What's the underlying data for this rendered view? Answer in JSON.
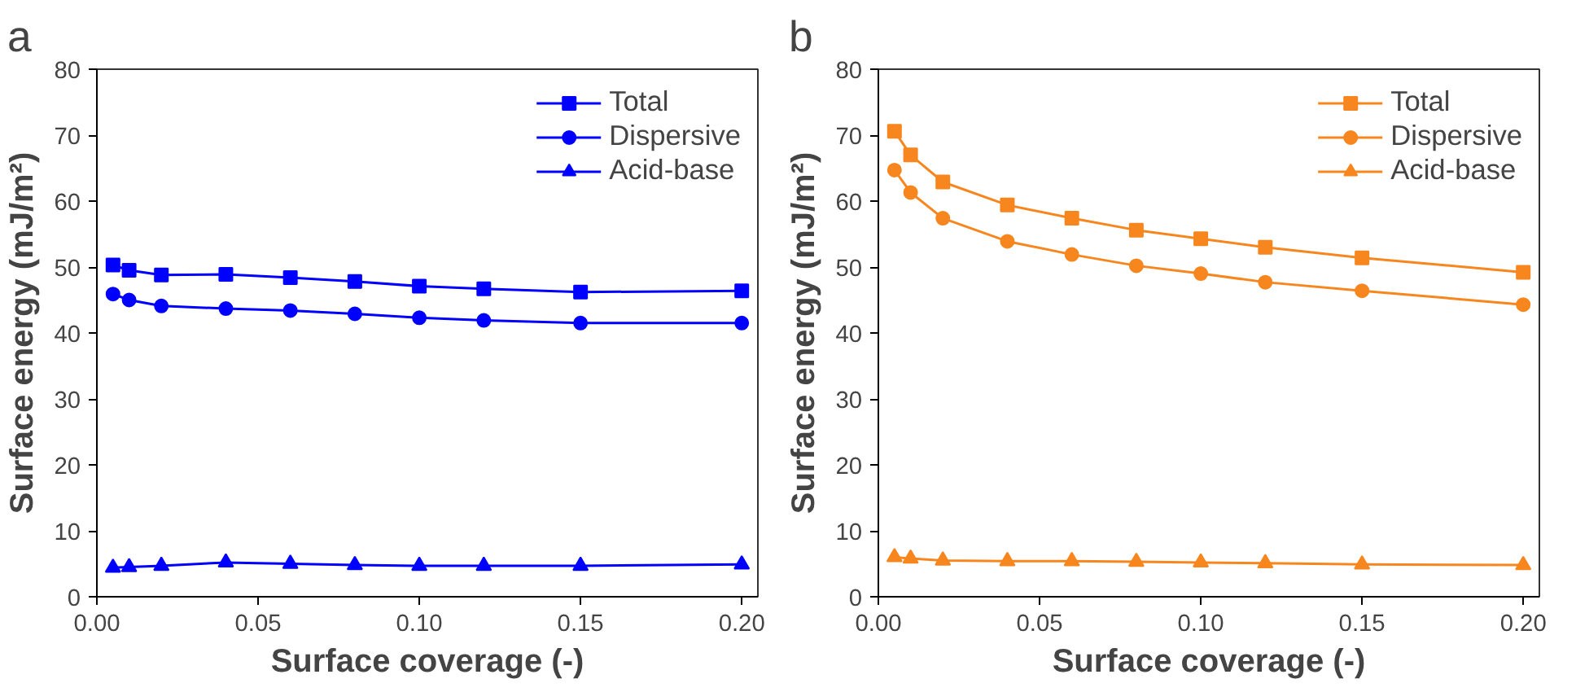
{
  "chart_data": [
    {
      "type": "line",
      "title": "a",
      "xlabel": "Surface coverage (-)",
      "ylabel": "Surface energy (mJ/m²)",
      "x": [
        0.005,
        0.01,
        0.02,
        0.04,
        0.06,
        0.08,
        0.1,
        0.12,
        0.15,
        0.2
      ],
      "series": [
        {
          "name": "Total",
          "color": "#0000ff",
          "marker": "square",
          "values": [
            50.3,
            49.5,
            48.8,
            48.9,
            48.4,
            47.8,
            47.1,
            46.7,
            46.2,
            46.4
          ]
        },
        {
          "name": "Dispersive",
          "color": "#0000ff",
          "marker": "circle",
          "values": [
            45.9,
            45.0,
            44.1,
            43.7,
            43.4,
            42.9,
            42.3,
            41.9,
            41.5,
            41.5
          ]
        },
        {
          "name": "Acid-base",
          "color": "#0000ff",
          "marker": "triangle",
          "values": [
            4.4,
            4.5,
            4.7,
            5.2,
            5.0,
            4.8,
            4.7,
            4.7,
            4.7,
            4.9
          ]
        }
      ],
      "xlim": [
        0,
        0.205
      ],
      "ylim": [
        0,
        80
      ],
      "xticks": [
        {
          "value": 0,
          "label": "0.00"
        },
        {
          "value": 0.05,
          "label": "0.05"
        },
        {
          "value": 0.1,
          "label": "0.10"
        },
        {
          "value": 0.15,
          "label": "0.15"
        },
        {
          "value": 0.2,
          "label": "0.20"
        }
      ],
      "yticks": [
        0,
        10,
        20,
        30,
        40,
        50,
        60,
        70,
        80
      ],
      "legend": "top right",
      "grid": false
    },
    {
      "type": "line",
      "title": "b",
      "xlabel": "Surface coverage (-)",
      "ylabel": "Surface energy (mJ/m²)",
      "x": [
        0.005,
        0.01,
        0.02,
        0.04,
        0.06,
        0.08,
        0.1,
        0.12,
        0.15,
        0.2
      ],
      "series": [
        {
          "name": "Total",
          "color": "#f7861e",
          "marker": "square",
          "values": [
            70.6,
            67.0,
            62.9,
            59.4,
            57.4,
            55.6,
            54.3,
            53.0,
            51.4,
            49.2
          ]
        },
        {
          "name": "Dispersive",
          "color": "#f7861e",
          "marker": "circle",
          "values": [
            64.7,
            61.3,
            57.4,
            53.9,
            51.9,
            50.2,
            49.0,
            47.7,
            46.4,
            44.3
          ]
        },
        {
          "name": "Acid-base",
          "color": "#f7861e",
          "marker": "triangle",
          "values": [
            6.0,
            5.8,
            5.5,
            5.4,
            5.4,
            5.3,
            5.2,
            5.1,
            4.9,
            4.8
          ]
        }
      ],
      "xlim": [
        0,
        0.205
      ],
      "ylim": [
        0,
        80
      ],
      "xticks": [
        {
          "value": 0,
          "label": "0.00"
        },
        {
          "value": 0.05,
          "label": "0.05"
        },
        {
          "value": 0.1,
          "label": "0.10"
        },
        {
          "value": 0.15,
          "label": "0.15"
        },
        {
          "value": 0.2,
          "label": "0.20"
        }
      ],
      "yticks": [
        0,
        10,
        20,
        30,
        40,
        50,
        60,
        70,
        80
      ],
      "legend": "top right",
      "grid": false
    }
  ]
}
